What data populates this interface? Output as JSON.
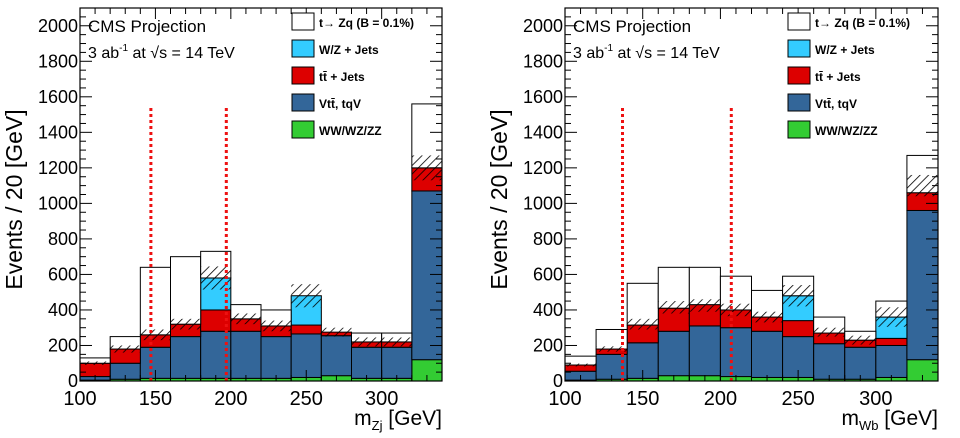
{
  "colors": {
    "signal": "#ffffff",
    "wz_jets": "#33ccff",
    "ttbar_jets": "#dd0000",
    "vtt_tqv": "#336699",
    "diboson": "#33cc33",
    "cut_line": "#ee1111",
    "uncertainty_hatch": "#000000"
  },
  "chart_data": [
    {
      "type": "bar",
      "stacked": true,
      "header": {
        "experiment": "CMS Projection",
        "lumi_value": "3 ab",
        "lumi_exponent": "-1",
        "lumi_at": " at ",
        "sqrt": "√",
        "energy": "s = 14 TeV"
      },
      "xlabel": {
        "base": "m",
        "sub": "Zj",
        "unit": " [GeV]"
      },
      "ylabel": "Events / 20 [GeV]",
      "xlim": [
        100,
        340
      ],
      "ylim": [
        0,
        2100
      ],
      "xticks": [
        100,
        150,
        200,
        250,
        300
      ],
      "yticks": [
        0,
        200,
        400,
        600,
        800,
        1000,
        1200,
        1400,
        1600,
        1800,
        2000
      ],
      "bin_edges": [
        100,
        120,
        140,
        160,
        180,
        200,
        220,
        240,
        260,
        280,
        300,
        320,
        340
      ],
      "legend_position": "top-right",
      "legend": [
        {
          "key": "signal",
          "label": "t→ Zq (B = 0.1%)"
        },
        {
          "key": "wz_jets",
          "label": "W/Z + Jets"
        },
        {
          "key": "ttbar_jets",
          "label": "tt̄ + Jets"
        },
        {
          "key": "vtt_tqv",
          "label": "Vtt̄, tqV"
        },
        {
          "key": "diboson",
          "label": "WW/WZ/ZZ"
        }
      ],
      "series": [
        {
          "key": "diboson",
          "values": [
            5,
            10,
            15,
            15,
            15,
            15,
            15,
            20,
            30,
            15,
            15,
            120
          ]
        },
        {
          "key": "vtt_tqv",
          "values": [
            20,
            90,
            175,
            235,
            265,
            265,
            235,
            245,
            225,
            175,
            175,
            950
          ]
        },
        {
          "key": "ttbar_jets",
          "values": [
            75,
            80,
            70,
            70,
            120,
            70,
            60,
            50,
            20,
            30,
            30,
            130
          ]
        },
        {
          "key": "wz_jets",
          "values": [
            0,
            0,
            0,
            0,
            180,
            0,
            0,
            165,
            0,
            0,
            0,
            0
          ]
        },
        {
          "key": "signal",
          "values": [
            30,
            70,
            380,
            380,
            150,
            80,
            90,
            0,
            0,
            50,
            50,
            360
          ]
        }
      ],
      "uncertainty": {
        "central": [
          100,
          180,
          260,
          320,
          580,
          350,
          310,
          480,
          275,
          220,
          220,
          1200
        ],
        "half_width": [
          10,
          20,
          30,
          30,
          65,
          30,
          30,
          65,
          25,
          25,
          25,
          70
        ]
      },
      "cut_lines_x": [
        147,
        197
      ]
    },
    {
      "type": "bar",
      "stacked": true,
      "header": {
        "experiment": "CMS Projection",
        "lumi_value": "3 ab",
        "lumi_exponent": "-1",
        "lumi_at": " at ",
        "sqrt": "√",
        "energy": "s = 14 TeV"
      },
      "xlabel": {
        "base": "m",
        "sub": "Wb",
        "unit": " [GeV]"
      },
      "ylabel": "Events / 20 [GeV]",
      "xlim": [
        100,
        340
      ],
      "ylim": [
        0,
        2100
      ],
      "xticks": [
        100,
        150,
        200,
        250,
        300
      ],
      "yticks": [
        0,
        200,
        400,
        600,
        800,
        1000,
        1200,
        1400,
        1600,
        1800,
        2000
      ],
      "bin_edges": [
        100,
        120,
        140,
        160,
        180,
        200,
        220,
        240,
        260,
        280,
        300,
        320,
        340
      ],
      "legend_position": "top-right",
      "legend": [
        {
          "key": "signal",
          "label": "t→ Zq (B = 0.1%)"
        },
        {
          "key": "wz_jets",
          "label": "W/Z + Jets"
        },
        {
          "key": "ttbar_jets",
          "label": "tt̄ + Jets"
        },
        {
          "key": "vtt_tqv",
          "label": "Vtt̄, tqV"
        },
        {
          "key": "diboson",
          "label": "WW/WZ/ZZ"
        }
      ],
      "series": [
        {
          "key": "diboson",
          "values": [
            5,
            10,
            15,
            30,
            30,
            25,
            20,
            20,
            10,
            10,
            20,
            120
          ]
        },
        {
          "key": "vtt_tqv",
          "values": [
            50,
            140,
            200,
            250,
            280,
            275,
            260,
            230,
            200,
            180,
            180,
            840
          ]
        },
        {
          "key": "ttbar_jets",
          "values": [
            35,
            30,
            100,
            130,
            120,
            100,
            80,
            90,
            60,
            40,
            40,
            100
          ]
        },
        {
          "key": "wz_jets",
          "values": [
            0,
            0,
            0,
            0,
            0,
            0,
            0,
            140,
            0,
            0,
            120,
            0
          ]
        },
        {
          "key": "signal",
          "values": [
            50,
            110,
            235,
            230,
            210,
            190,
            150,
            110,
            90,
            50,
            90,
            210
          ]
        }
      ],
      "uncertainty": {
        "central": [
          90,
          180,
          320,
          415,
          425,
          400,
          360,
          480,
          275,
          230,
          360,
          1100
        ],
        "half_width": [
          8,
          15,
          30,
          35,
          35,
          35,
          30,
          60,
          25,
          25,
          55,
          60
        ]
      },
      "cut_lines_x": [
        137,
        207
      ]
    }
  ]
}
